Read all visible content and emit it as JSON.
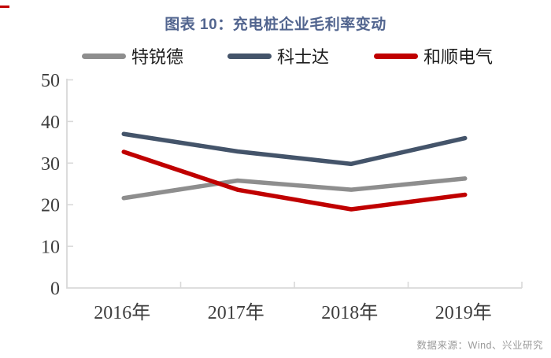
{
  "page": {
    "source_note": "数据来源：Wind、兴业研究"
  },
  "chart_data": {
    "type": "line",
    "title": "图表 10：充电桩企业毛利率变动",
    "categories": [
      "2016年",
      "2017年",
      "2018年",
      "2019年"
    ],
    "series": [
      {
        "name": "特锐德",
        "color": "#8e8e8e",
        "values": [
          21.6,
          25.8,
          23.6,
          26.3
        ]
      },
      {
        "name": "科士达",
        "color": "#44546a",
        "values": [
          37.0,
          32.8,
          29.8,
          36.0
        ]
      },
      {
        "name": "和顺电气",
        "color": "#c00000",
        "values": [
          32.7,
          23.6,
          18.9,
          22.4
        ]
      }
    ],
    "ylim": [
      0,
      50
    ],
    "yticks": [
      0,
      10,
      20,
      30,
      40,
      50
    ],
    "grid": false,
    "legend_position": "top",
    "xlabel": "",
    "ylabel": "",
    "axis_color": "#d9d9d9",
    "tick_text_color": "#3d3d3d",
    "title_color": "#52658f",
    "source_color": "#9a9a9a",
    "accent_red": "#c00000"
  }
}
